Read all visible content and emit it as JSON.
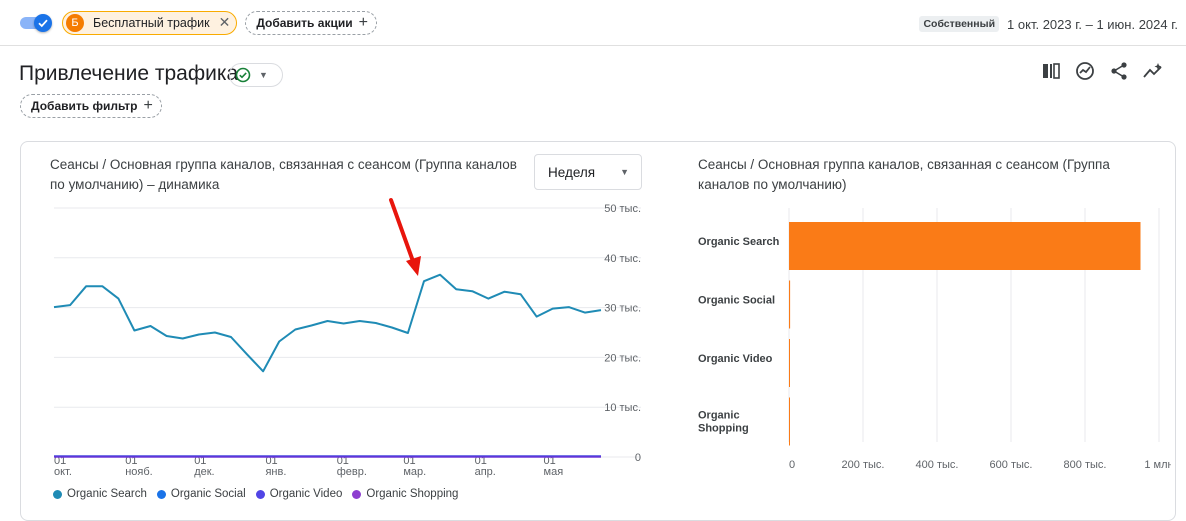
{
  "topbar": {
    "segment_badge": "Б",
    "segment_label": "Бесплатный трафик",
    "add_actions_label": "Добавить акции",
    "date_badge": "Собственный",
    "date_range": "1 окт. 2023 г. – 1 июн. 2024 г."
  },
  "page": {
    "title": "Привлечение трафика",
    "add_filter_label": "Добавить фильтр"
  },
  "icons": {
    "compare": "compare-columns-icon",
    "insights": "insights-icon",
    "share": "share-icon",
    "trend": "trend-sparkle-icon"
  },
  "colors": {
    "line_series": "#1f8bb5",
    "bar": "#fa7b17",
    "annotation_arrow": "#e8150c",
    "video_line": "#5e35d9"
  },
  "line_chart": {
    "title": "Сеансы / Основная группа каналов, связанная с сеансом (Группа каналов по умолчанию) – динамика",
    "granularity_label": "Неделя",
    "legend": [
      {
        "name": "Organic Search",
        "color": "#1f8bb5"
      },
      {
        "name": "Organic Social",
        "color": "#1a73e8"
      },
      {
        "name": "Organic Video",
        "color": "#5145e5"
      },
      {
        "name": "Organic Shopping",
        "color": "#8e3fd0"
      }
    ]
  },
  "bar_chart": {
    "title": "Сеансы / Основная группа каналов, связанная с сеансом (Группа каналов по умолчанию)"
  },
  "chart_data": [
    {
      "type": "line",
      "x": [
        "2023-10-01",
        "2023-10-08",
        "2023-10-15",
        "2023-10-22",
        "2023-10-29",
        "2023-11-05",
        "2023-11-12",
        "2023-11-19",
        "2023-11-26",
        "2023-12-03",
        "2023-12-10",
        "2023-12-17",
        "2023-12-24",
        "2023-12-31",
        "2024-01-07",
        "2024-01-14",
        "2024-01-21",
        "2024-01-28",
        "2024-02-04",
        "2024-02-11",
        "2024-02-18",
        "2024-02-25",
        "2024-03-03",
        "2024-03-10",
        "2024-03-17",
        "2024-03-24",
        "2024-03-31",
        "2024-04-07",
        "2024-04-14",
        "2024-04-21",
        "2024-04-28",
        "2024-05-05",
        "2024-05-12",
        "2024-05-19",
        "2024-05-26"
      ],
      "x_tick_labels": [
        {
          "day": "01",
          "month": "окт."
        },
        {
          "day": "01",
          "month": "нояб."
        },
        {
          "day": "01",
          "month": "дек."
        },
        {
          "day": "01",
          "month": "янв."
        },
        {
          "day": "01",
          "month": "февр."
        },
        {
          "day": "01",
          "month": "мар."
        },
        {
          "day": "01",
          "month": "апр."
        },
        {
          "day": "01",
          "month": "мая"
        }
      ],
      "y_ticks": [
        "50 тыс.",
        "40 тыс.",
        "30 тыс.",
        "20 тыс.",
        "10 тыс.",
        "0"
      ],
      "ylim": [
        0,
        50000
      ],
      "grid": true,
      "series": [
        {
          "name": "Organic Search",
          "values": [
            30100,
            30500,
            34300,
            34300,
            31800,
            25400,
            26300,
            24300,
            23800,
            24600,
            25000,
            24100,
            20600,
            17200,
            23200,
            25600,
            26400,
            27300,
            26800,
            27300,
            26900,
            26000,
            24900,
            35300,
            36600,
            33700,
            33300,
            31800,
            33200,
            32700,
            28200,
            29800,
            30100,
            29000,
            29500
          ]
        },
        {
          "name": "Organic Social",
          "values": [
            200,
            200,
            200,
            200,
            200,
            200,
            200,
            200,
            200,
            200,
            200,
            200,
            200,
            200,
            200,
            200,
            200,
            200,
            200,
            200,
            200,
            200,
            200,
            200,
            200,
            200,
            200,
            200,
            200,
            200,
            200,
            200,
            200,
            200,
            200
          ]
        },
        {
          "name": "Organic Video",
          "values": [
            100,
            100,
            100,
            100,
            100,
            100,
            100,
            100,
            100,
            100,
            100,
            100,
            100,
            100,
            100,
            100,
            100,
            100,
            100,
            100,
            100,
            100,
            100,
            100,
            100,
            100,
            100,
            100,
            100,
            100,
            100,
            100,
            100,
            100,
            100
          ]
        },
        {
          "name": "Organic Shopping",
          "values": [
            0,
            0,
            0,
            0,
            0,
            0,
            0,
            0,
            0,
            0,
            0,
            0,
            0,
            0,
            0,
            0,
            0,
            0,
            0,
            0,
            0,
            0,
            0,
            0,
            0,
            0,
            0,
            0,
            0,
            0,
            0,
            0,
            0,
            0,
            0
          ]
        }
      ]
    },
    {
      "type": "bar",
      "orientation": "horizontal",
      "categories": [
        "Organic Search",
        "Organic Social",
        "Organic Video",
        "Organic Shopping"
      ],
      "values": [
        950000,
        3000,
        1500,
        500
      ],
      "x_ticks": [
        "0",
        "200 тыс.",
        "400 тыс.",
        "600 тыс.",
        "800 тыс.",
        "1 млн"
      ],
      "xlim": [
        0,
        1000000
      ],
      "grid": true
    }
  ]
}
